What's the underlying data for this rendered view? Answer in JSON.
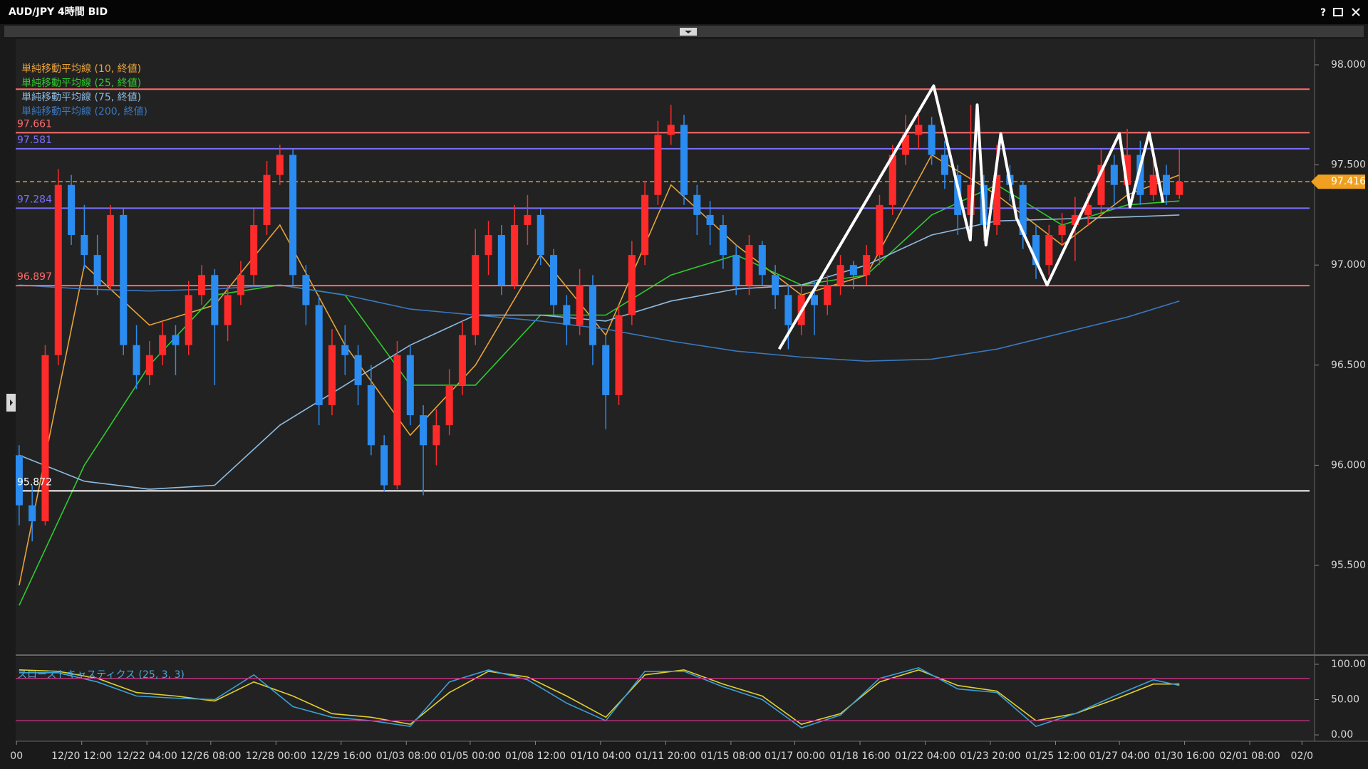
{
  "window": {
    "title": "AUD/JPY 4時間 BID"
  },
  "chart_data": [
    {
      "type": "candlestick",
      "xlim": [
        -0.13,
        99.26
      ],
      "ylim": [
        95.059,
        98.128
      ],
      "yticks": [
        {
          "value": 95.5,
          "label": "95.500"
        },
        {
          "value": 96,
          "label": "96.000"
        },
        {
          "value": 96.5,
          "label": "96.500"
        },
        {
          "value": 97,
          "label": "97.000"
        },
        {
          "value": 97.5,
          "label": "97.500"
        },
        {
          "value": 98,
          "label": "98.000"
        }
      ],
      "up_color": "#ff2a2a",
      "down_color": "#2a8cf0",
      "candles": [
        [
          96.05,
          96.1,
          95.7,
          95.8
        ],
        [
          95.8,
          95.9,
          95.62,
          95.72
        ],
        [
          95.72,
          96.6,
          95.7,
          96.55
        ],
        [
          96.55,
          97.48,
          96.5,
          97.4
        ],
        [
          97.4,
          97.45,
          97.1,
          97.15
        ],
        [
          97.15,
          97.3,
          96.98,
          97.05
        ],
        [
          97.05,
          97.15,
          96.85,
          96.9
        ],
        [
          96.9,
          97.3,
          96.88,
          97.25
        ],
        [
          97.25,
          97.28,
          96.55,
          96.6
        ],
        [
          96.6,
          96.7,
          96.38,
          96.45
        ],
        [
          96.45,
          96.62,
          96.4,
          96.55
        ],
        [
          96.55,
          96.72,
          96.5,
          96.65
        ],
        [
          96.65,
          96.7,
          96.45,
          96.6
        ],
        [
          96.6,
          96.92,
          96.55,
          96.85
        ],
        [
          96.85,
          97.0,
          96.8,
          96.95
        ],
        [
          96.95,
          96.98,
          96.4,
          96.7
        ],
        [
          96.7,
          96.9,
          96.62,
          96.85
        ],
        [
          96.85,
          97.02,
          96.8,
          96.95
        ],
        [
          96.95,
          97.28,
          96.9,
          97.2
        ],
        [
          97.2,
          97.52,
          97.15,
          97.45
        ],
        [
          97.45,
          97.6,
          97.4,
          97.55
        ],
        [
          97.55,
          97.58,
          96.9,
          96.95
        ],
        [
          96.95,
          97.0,
          96.7,
          96.8
        ],
        [
          96.8,
          96.85,
          96.2,
          96.3
        ],
        [
          96.3,
          96.68,
          96.25,
          96.6
        ],
        [
          96.6,
          96.7,
          96.45,
          96.55
        ],
        [
          96.55,
          96.6,
          96.3,
          96.4
        ],
        [
          96.4,
          96.5,
          96.05,
          96.1
        ],
        [
          96.1,
          96.15,
          95.87,
          95.9
        ],
        [
          95.9,
          96.62,
          95.88,
          96.55
        ],
        [
          96.55,
          96.6,
          96.2,
          96.25
        ],
        [
          96.25,
          96.3,
          95.85,
          96.1
        ],
        [
          96.1,
          96.28,
          96.0,
          96.2
        ],
        [
          96.2,
          96.48,
          96.15,
          96.4
        ],
        [
          96.4,
          96.72,
          96.35,
          96.65
        ],
        [
          96.65,
          97.18,
          96.6,
          97.05
        ],
        [
          97.05,
          97.22,
          96.95,
          97.15
        ],
        [
          97.15,
          97.2,
          96.85,
          96.9
        ],
        [
          96.9,
          97.3,
          96.88,
          97.2
        ],
        [
          97.2,
          97.35,
          97.1,
          97.25
        ],
        [
          97.25,
          97.28,
          97.0,
          97.05
        ],
        [
          97.05,
          97.08,
          96.75,
          96.8
        ],
        [
          96.8,
          96.85,
          96.6,
          96.7
        ],
        [
          96.7,
          96.98,
          96.65,
          96.9
        ],
        [
          96.9,
          96.95,
          96.5,
          96.6
        ],
        [
          96.6,
          96.65,
          96.18,
          96.35
        ],
        [
          96.35,
          96.8,
          96.3,
          96.75
        ],
        [
          96.75,
          97.12,
          96.7,
          97.05
        ],
        [
          97.05,
          97.42,
          97.0,
          97.35
        ],
        [
          97.35,
          97.72,
          97.3,
          97.65
        ],
        [
          97.65,
          97.8,
          97.6,
          97.7
        ],
        [
          97.7,
          97.75,
          97.3,
          97.35
        ],
        [
          97.35,
          97.4,
          97.15,
          97.25
        ],
        [
          97.25,
          97.32,
          97.1,
          97.2
        ],
        [
          97.2,
          97.25,
          96.98,
          97.05
        ],
        [
          97.05,
          97.1,
          96.85,
          96.9
        ],
        [
          96.9,
          97.15,
          96.85,
          97.1
        ],
        [
          97.1,
          97.12,
          96.9,
          96.95
        ],
        [
          96.95,
          97.0,
          96.78,
          96.85
        ],
        [
          96.85,
          96.9,
          96.58,
          96.7
        ],
        [
          96.7,
          96.9,
          96.65,
          96.85
        ],
        [
          96.85,
          96.92,
          96.65,
          96.8
        ],
        [
          96.8,
          96.95,
          96.75,
          96.9
        ],
        [
          96.9,
          97.05,
          96.85,
          97.0
        ],
        [
          97.0,
          97.02,
          96.88,
          96.95
        ],
        [
          96.95,
          97.1,
          96.9,
          97.05
        ],
        [
          97.05,
          97.35,
          97.0,
          97.3
        ],
        [
          97.3,
          97.6,
          97.25,
          97.55
        ],
        [
          97.55,
          97.75,
          97.5,
          97.65
        ],
        [
          97.65,
          97.75,
          97.58,
          97.7
        ],
        [
          97.7,
          97.74,
          97.5,
          97.55
        ],
        [
          97.55,
          97.62,
          97.38,
          97.45
        ],
        [
          97.45,
          97.5,
          97.15,
          97.25
        ],
        [
          97.25,
          97.8,
          97.2,
          97.4
        ],
        [
          97.4,
          97.45,
          97.12,
          97.2
        ],
        [
          97.2,
          97.6,
          97.15,
          97.45
        ],
        [
          97.45,
          97.5,
          97.32,
          97.4
        ],
        [
          97.4,
          97.42,
          97.08,
          97.15
        ],
        [
          97.15,
          97.2,
          96.93,
          97.0
        ],
        [
          97.0,
          97.2,
          96.95,
          97.15
        ],
        [
          97.15,
          97.26,
          97.1,
          97.2
        ],
        [
          97.2,
          97.34,
          97.02,
          97.25
        ],
        [
          97.25,
          97.36,
          97.2,
          97.3
        ],
        [
          97.3,
          97.58,
          97.25,
          97.5
        ],
        [
          97.5,
          97.55,
          97.3,
          97.4
        ],
        [
          97.4,
          97.68,
          97.35,
          97.55
        ],
        [
          97.55,
          97.62,
          97.3,
          97.35
        ],
        [
          97.35,
          97.55,
          97.32,
          97.45
        ],
        [
          97.45,
          97.5,
          97.3,
          97.35
        ],
        [
          97.35,
          97.58,
          97.33,
          97.416
        ]
      ],
      "series": [
        {
          "name": "単純移動平均線 (10, 終値)",
          "color": "#e8a33a",
          "x": [
            0,
            5,
            10,
            15,
            20,
            25,
            30,
            35,
            40,
            45,
            50,
            55,
            60,
            65,
            70,
            75,
            80,
            85,
            89
          ],
          "values": [
            95.4,
            97.0,
            96.7,
            96.8,
            97.2,
            96.6,
            96.15,
            96.5,
            97.05,
            96.65,
            97.4,
            97.1,
            96.85,
            96.95,
            97.55,
            97.35,
            97.1,
            97.35,
            97.45
          ]
        },
        {
          "name": "単純移動平均線 (25, 終値)",
          "color": "#2ecc2e",
          "x": [
            0,
            5,
            10,
            15,
            20,
            25,
            30,
            35,
            40,
            45,
            50,
            55,
            60,
            65,
            70,
            75,
            80,
            85,
            89
          ],
          "values": [
            95.3,
            96.0,
            96.5,
            96.85,
            96.9,
            96.85,
            96.4,
            96.4,
            96.75,
            96.75,
            96.95,
            97.05,
            96.9,
            96.95,
            97.25,
            97.4,
            97.2,
            97.3,
            97.32
          ]
        },
        {
          "name": "単純移動平均線 (75, 終値)",
          "color": "#8fbbe0",
          "x": [
            0,
            5,
            10,
            15,
            20,
            25,
            30,
            35,
            40,
            45,
            50,
            55,
            60,
            65,
            70,
            75,
            80,
            85,
            89
          ],
          "values": [
            96.05,
            95.92,
            95.88,
            95.9,
            96.2,
            96.4,
            96.6,
            96.75,
            96.75,
            96.72,
            96.82,
            96.88,
            96.9,
            97.0,
            97.15,
            97.22,
            97.23,
            97.24,
            97.25
          ]
        },
        {
          "name": "単純移動平均線 (200, 終値)",
          "color": "#3a78c0",
          "x": [
            0,
            5,
            10,
            15,
            20,
            25,
            30,
            35,
            40,
            45,
            50,
            55,
            60,
            65,
            70,
            75,
            80,
            85,
            89
          ],
          "values": [
            96.9,
            96.88,
            96.87,
            96.88,
            96.9,
            96.85,
            96.78,
            96.75,
            96.72,
            96.68,
            96.62,
            96.57,
            96.54,
            96.52,
            96.53,
            96.58,
            96.66,
            96.74,
            96.82
          ]
        }
      ],
      "levels": [
        {
          "value": 97.878,
          "color": "#ff6b6b"
        },
        {
          "value": 97.661,
          "label": "97.661",
          "color": "#ff6b6b"
        },
        {
          "value": 97.581,
          "label": "97.581",
          "color": "#7a70ff"
        },
        {
          "value": 97.284,
          "label": "97.284",
          "color": "#7a70ff"
        },
        {
          "value": 96.897,
          "label": "96.897",
          "color": "#ff6b6b"
        },
        {
          "value": 95.872,
          "label": "95.872",
          "color": "#ffffff"
        }
      ],
      "current_price": {
        "value": 97.416,
        "label": "97.416",
        "color": "#f0a020"
      },
      "drawings": [
        {
          "color": "#ffffff",
          "x": [
            58.3,
            70.15,
            72.96,
            73.49,
            74.16,
            75.3,
            76.51,
            78.85,
            84.4,
            85.21,
            86.68,
            87.75
          ],
          "values": [
            96.58,
            97.895,
            97.125,
            97.8,
            97.1,
            97.656,
            97.233,
            96.9,
            97.656,
            97.29,
            97.66,
            97.312
          ]
        }
      ]
    },
    {
      "type": "line",
      "title": "スローストキャスティクス (25, 3, 3)",
      "xlim": [
        -0.13,
        99.26
      ],
      "ylim": [
        -9,
        111
      ],
      "yticks": [
        {
          "value": 0,
          "label": "0.00"
        },
        {
          "value": 50,
          "label": "50.00"
        },
        {
          "value": 100,
          "label": "100.00"
        }
      ],
      "xticks": [
        {
          "value": -0.2,
          "label": "00"
        },
        {
          "value": 4.8,
          "label": "12/20 12:00"
        },
        {
          "value": 9.8,
          "label": "12/22 04:00"
        },
        {
          "value": 14.7,
          "label": "12/26 08:00"
        },
        {
          "value": 19.7,
          "label": "12/28 00:00"
        },
        {
          "value": 24.7,
          "label": "12/29 16:00"
        },
        {
          "value": 29.7,
          "label": "01/03 08:00"
        },
        {
          "value": 34.6,
          "label": "01/05 00:00"
        },
        {
          "value": 39.6,
          "label": "01/08 12:00"
        },
        {
          "value": 44.6,
          "label": "01/10 04:00"
        },
        {
          "value": 49.6,
          "label": "01/11 20:00"
        },
        {
          "value": 54.6,
          "label": "01/15 08:00"
        },
        {
          "value": 59.5,
          "label": "01/17 00:00"
        },
        {
          "value": 64.5,
          "label": "01/18 16:00"
        },
        {
          "value": 69.5,
          "label": "01/22 04:00"
        },
        {
          "value": 74.5,
          "label": "01/23 20:00"
        },
        {
          "value": 79.5,
          "label": "01/25 12:00"
        },
        {
          "value": 84.4,
          "label": "01/27 04:00"
        },
        {
          "value": 89.4,
          "label": "01/30 16:00"
        },
        {
          "value": 94.4,
          "label": "02/01 08:00"
        },
        {
          "value": 98.4,
          "label": "02/0"
        }
      ],
      "series": [
        {
          "color": "#e0d030",
          "x": [
            0,
            3,
            6,
            9,
            12,
            15,
            18,
            21,
            24,
            27,
            30,
            33,
            36,
            39,
            42,
            45,
            48,
            51,
            54,
            57,
            60,
            63,
            66,
            69,
            72,
            75,
            78,
            81,
            84,
            87,
            89
          ],
          "values": [
            92,
            90,
            80,
            60,
            55,
            48,
            75,
            55,
            30,
            25,
            15,
            60,
            90,
            82,
            55,
            25,
            85,
            92,
            72,
            55,
            15,
            30,
            75,
            92,
            70,
            62,
            20,
            30,
            50,
            72,
            72
          ]
        },
        {
          "color": "#3aa0d8",
          "x": [
            0,
            3,
            6,
            9,
            12,
            15,
            18,
            21,
            24,
            27,
            30,
            33,
            36,
            39,
            42,
            45,
            48,
            51,
            54,
            57,
            60,
            63,
            66,
            69,
            72,
            75,
            78,
            81,
            84,
            87,
            89
          ],
          "values": [
            88,
            88,
            75,
            55,
            52,
            50,
            85,
            40,
            25,
            20,
            12,
            75,
            92,
            78,
            45,
            20,
            90,
            90,
            68,
            50,
            10,
            28,
            80,
            95,
            65,
            60,
            12,
            30,
            55,
            78,
            70
          ]
        }
      ],
      "levels": [
        {
          "value": 80,
          "color": "#b8307a"
        },
        {
          "value": 20,
          "color": "#b8307a"
        }
      ]
    }
  ]
}
